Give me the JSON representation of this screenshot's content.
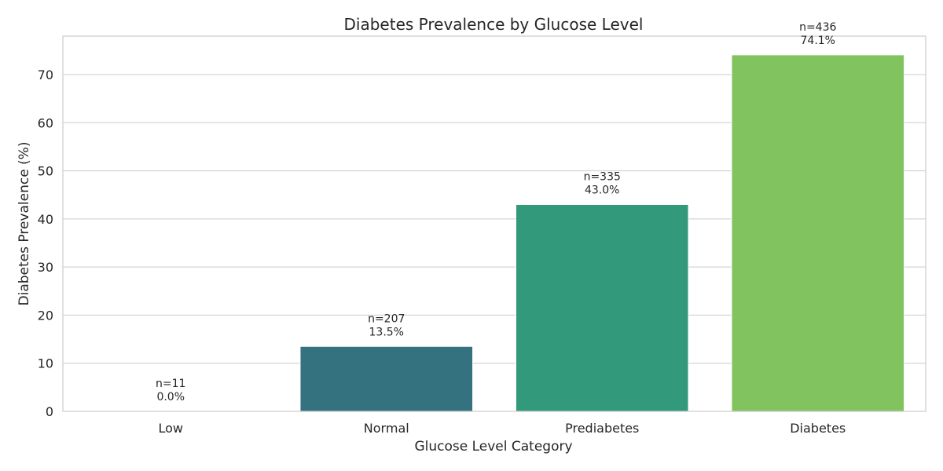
{
  "chart_data": {
    "type": "bar",
    "title": "Diabetes Prevalence by Glucose Level",
    "xlabel": "Glucose Level Category",
    "ylabel": "Diabetes Prevalence (%)",
    "categories": [
      "Low",
      "Normal",
      "Prediabetes",
      "Diabetes"
    ],
    "values": [
      0.0,
      13.5,
      43.0,
      74.1
    ],
    "counts": [
      "n=11",
      "n=207",
      "n=335",
      "n=436"
    ],
    "value_labels": [
      "0.0%",
      "13.5%",
      "43.0%",
      "74.1%"
    ],
    "colors": [
      "#440154",
      "#357280",
      "#33997b",
      "#80c35f"
    ],
    "ylim": [
      0,
      78
    ],
    "yticks": [
      0,
      10,
      20,
      30,
      40,
      50,
      60,
      70
    ],
    "grid": true,
    "legend": "none"
  }
}
